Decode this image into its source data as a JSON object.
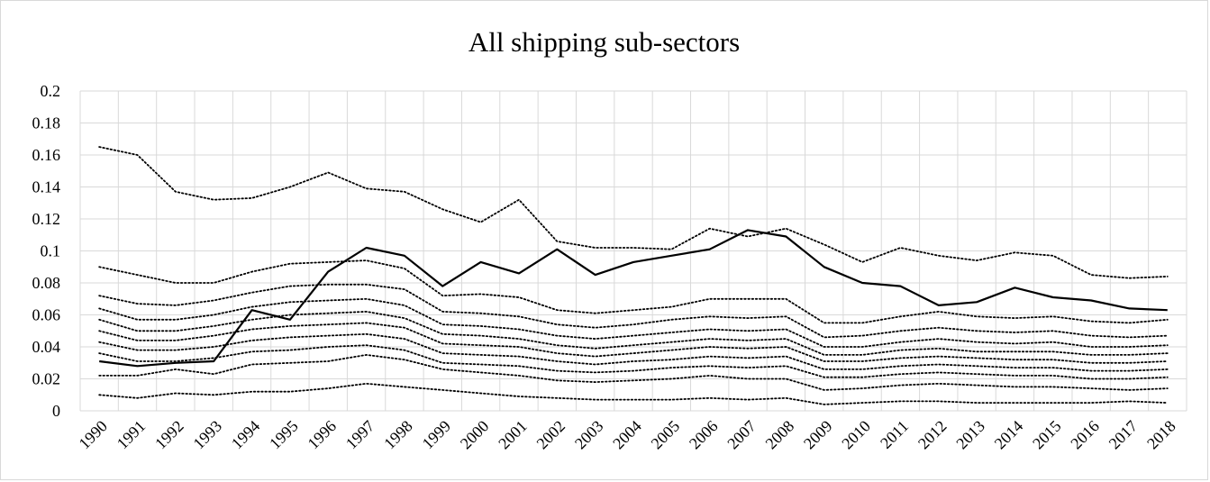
{
  "chart_data": {
    "type": "line",
    "title": "All shipping sub-sectors",
    "xlabel": "",
    "ylabel": "",
    "ylim": [
      0,
      0.2
    ],
    "yticks": [
      "0",
      "0.02",
      "0.04",
      "0.06",
      "0.08",
      "0.1",
      "0.12",
      "0.14",
      "0.16",
      "0.18",
      "0.2"
    ],
    "categories": [
      "1990",
      "1991",
      "1992",
      "1993",
      "1994",
      "1995",
      "1996",
      "1997",
      "1998",
      "1999",
      "2000",
      "2001",
      "2002",
      "2003",
      "2004",
      "2005",
      "2006",
      "2007",
      "2008",
      "2009",
      "2010",
      "2011",
      "2012",
      "2013",
      "2014",
      "2015",
      "2016",
      "2017",
      "2018"
    ],
    "grid": true,
    "legend": "none",
    "series": [
      {
        "style": "solid",
        "color": "#000000",
        "values": [
          0.031,
          0.028,
          0.03,
          0.031,
          0.063,
          0.057,
          0.087,
          0.102,
          0.097,
          0.078,
          0.093,
          0.086,
          0.101,
          0.085,
          0.093,
          0.097,
          0.101,
          0.113,
          0.109,
          0.09,
          0.08,
          0.078,
          0.066,
          0.068,
          0.077,
          0.071,
          0.069,
          0.064,
          0.063
        ]
      },
      {
        "style": "dotted",
        "color": "#000000",
        "values": [
          0.165,
          0.16,
          0.137,
          0.132,
          0.133,
          0.14,
          0.149,
          0.139,
          0.137,
          0.126,
          0.118,
          0.132,
          0.106,
          0.102,
          0.102,
          0.101,
          0.114,
          0.109,
          0.114,
          0.104,
          0.093,
          0.102,
          0.097,
          0.094,
          0.099,
          0.097,
          0.085,
          0.083,
          0.084
        ]
      },
      {
        "style": "dotted",
        "color": "#000000",
        "values": [
          0.09,
          0.085,
          0.08,
          0.08,
          0.087,
          0.092,
          0.093,
          0.094,
          0.089,
          0.072,
          0.073,
          0.071,
          0.063,
          0.061,
          0.063,
          0.065,
          0.07,
          0.07,
          0.07,
          0.055,
          0.055,
          0.059,
          0.062,
          0.059,
          0.058,
          0.059,
          0.056,
          0.055,
          0.057
        ]
      },
      {
        "style": "dotted",
        "color": "#000000",
        "values": [
          0.072,
          0.067,
          0.066,
          0.069,
          0.074,
          0.078,
          0.079,
          0.079,
          0.076,
          0.062,
          0.061,
          0.059,
          0.054,
          0.052,
          0.054,
          0.057,
          0.059,
          0.058,
          0.059,
          0.046,
          0.047,
          0.05,
          0.052,
          0.05,
          0.049,
          0.05,
          0.047,
          0.046,
          0.047
        ]
      },
      {
        "style": "dotted",
        "color": "#000000",
        "values": [
          0.064,
          0.057,
          0.057,
          0.06,
          0.065,
          0.068,
          0.069,
          0.07,
          0.066,
          0.054,
          0.053,
          0.051,
          0.047,
          0.045,
          0.047,
          0.049,
          0.051,
          0.05,
          0.051,
          0.04,
          0.04,
          0.043,
          0.045,
          0.043,
          0.042,
          0.043,
          0.04,
          0.04,
          0.041
        ]
      },
      {
        "style": "dotted",
        "color": "#000000",
        "values": [
          0.057,
          0.05,
          0.05,
          0.053,
          0.057,
          0.06,
          0.061,
          0.062,
          0.058,
          0.048,
          0.047,
          0.045,
          0.041,
          0.039,
          0.041,
          0.043,
          0.045,
          0.044,
          0.045,
          0.035,
          0.035,
          0.038,
          0.039,
          0.037,
          0.037,
          0.037,
          0.035,
          0.035,
          0.036
        ]
      },
      {
        "style": "dotted",
        "color": "#000000",
        "values": [
          0.05,
          0.044,
          0.044,
          0.047,
          0.051,
          0.053,
          0.054,
          0.055,
          0.052,
          0.042,
          0.041,
          0.04,
          0.036,
          0.034,
          0.036,
          0.038,
          0.04,
          0.039,
          0.04,
          0.031,
          0.031,
          0.033,
          0.034,
          0.033,
          0.032,
          0.032,
          0.03,
          0.03,
          0.031
        ]
      },
      {
        "style": "dotted",
        "color": "#000000",
        "values": [
          0.043,
          0.038,
          0.038,
          0.04,
          0.044,
          0.046,
          0.047,
          0.048,
          0.045,
          0.036,
          0.035,
          0.034,
          0.031,
          0.029,
          0.031,
          0.032,
          0.034,
          0.033,
          0.034,
          0.026,
          0.026,
          0.028,
          0.029,
          0.028,
          0.027,
          0.027,
          0.025,
          0.025,
          0.026
        ]
      },
      {
        "style": "dotted",
        "color": "#000000",
        "values": [
          0.036,
          0.031,
          0.031,
          0.033,
          0.037,
          0.038,
          0.04,
          0.041,
          0.038,
          0.03,
          0.029,
          0.028,
          0.025,
          0.024,
          0.025,
          0.027,
          0.028,
          0.027,
          0.028,
          0.021,
          0.021,
          0.023,
          0.024,
          0.023,
          0.022,
          0.022,
          0.02,
          0.02,
          0.021
        ]
      },
      {
        "style": "dotted",
        "color": "#000000",
        "values": [
          0.022,
          0.022,
          0.026,
          0.023,
          0.029,
          0.03,
          0.031,
          0.035,
          0.032,
          0.026,
          0.024,
          0.022,
          0.019,
          0.018,
          0.019,
          0.02,
          0.022,
          0.02,
          0.02,
          0.013,
          0.014,
          0.016,
          0.017,
          0.016,
          0.015,
          0.015,
          0.014,
          0.013,
          0.014
        ]
      },
      {
        "style": "dotted",
        "color": "#000000",
        "values": [
          0.01,
          0.008,
          0.011,
          0.01,
          0.012,
          0.012,
          0.014,
          0.017,
          0.015,
          0.013,
          0.011,
          0.009,
          0.008,
          0.007,
          0.007,
          0.007,
          0.008,
          0.007,
          0.008,
          0.004,
          0.005,
          0.006,
          0.006,
          0.005,
          0.005,
          0.005,
          0.005,
          0.006,
          0.005
        ]
      }
    ]
  }
}
